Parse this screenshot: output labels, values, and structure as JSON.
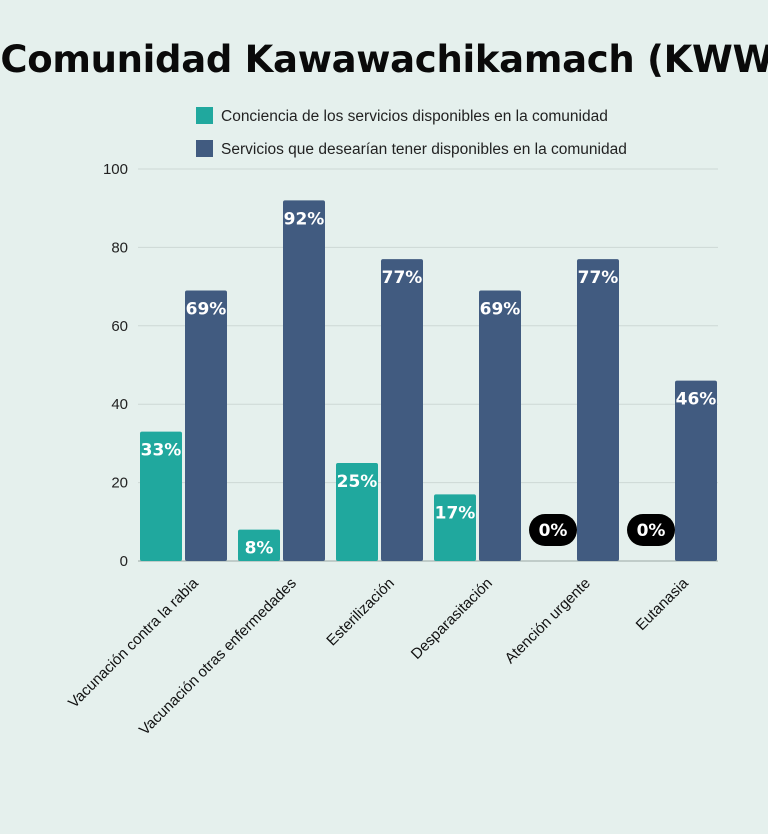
{
  "chart_data": {
    "type": "bar",
    "title": "Comunidad Kawawachikamach (KWW)",
    "categories": [
      "Vacunación contra la rabia",
      "Vacunación otras enfermedades",
      "Esterilización",
      "Desparasitación",
      "Atención urgente",
      "Eutanasia"
    ],
    "series": [
      {
        "name": "Conciencia de los servicios disponibles en la comunidad",
        "color": "#20a89e",
        "values": [
          33,
          8,
          25,
          17,
          0,
          0
        ],
        "labels": [
          "33%",
          "8%",
          "25%",
          "17%",
          "0%",
          "0%"
        ]
      },
      {
        "name": "Servicios que desearían tener disponibles en la comunidad",
        "color": "#415b80",
        "values": [
          69,
          92,
          77,
          69,
          77,
          46
        ],
        "labels": [
          "69%",
          "92%",
          "77%",
          "69%",
          "77%",
          "46%"
        ]
      }
    ],
    "yticks": [
      0,
      20,
      40,
      60,
      80,
      100
    ],
    "ylim": [
      0,
      100
    ],
    "grid": true,
    "legend_position": "top"
  }
}
